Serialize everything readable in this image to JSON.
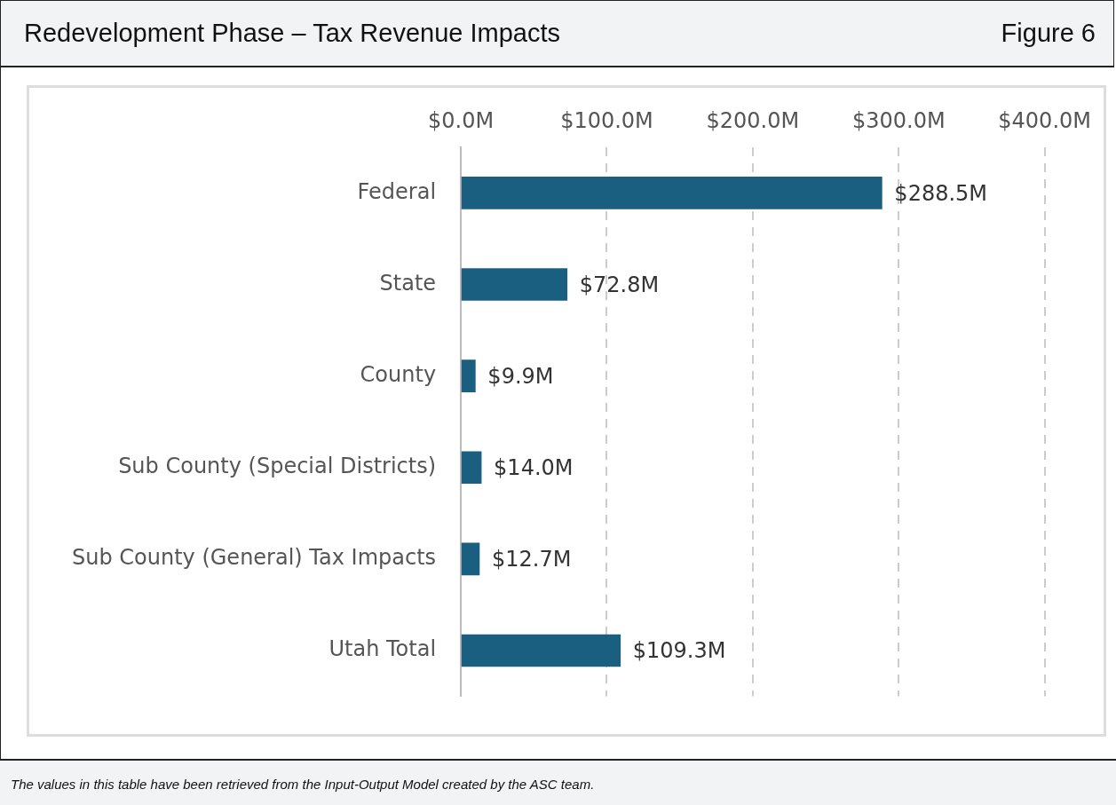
{
  "chart_data": {
    "type": "bar",
    "orientation": "horizontal",
    "title": "Redevelopment Phase – Tax Revenue Impacts",
    "subtitle": "Figure 6",
    "categories": [
      "Federal",
      "State",
      "County",
      "Sub County (Special Districts)",
      "Sub County (General) Tax Impacts",
      "Utah Total"
    ],
    "values": [
      288.5,
      72.8,
      9.9,
      14.0,
      12.7,
      109.3
    ],
    "value_labels": [
      "$288.5M",
      "$72.8M",
      "$9.9M",
      "$14.0M",
      "$12.7M",
      "$109.3M"
    ],
    "color": "#1b5f80",
    "xlim": [
      0,
      400
    ],
    "xticks": [
      {
        "value": 0,
        "label": "$0.0M"
      },
      {
        "value": 100,
        "label": "$100.0M"
      },
      {
        "value": 200,
        "label": "$200.0M"
      },
      {
        "value": 300,
        "label": "$300.0M"
      },
      {
        "value": 400,
        "label": "$400.0M"
      }
    ],
    "grid": "x",
    "legend": false,
    "annotations": [
      "The values in this table have been retrieved from the Input-Output Model created by the ASC team."
    ]
  }
}
